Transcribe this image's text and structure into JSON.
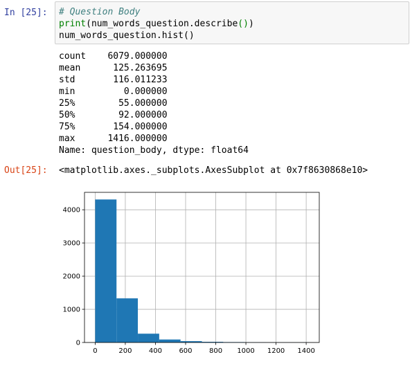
{
  "input_prompt": "In [25]:",
  "output_prompt": "Out[25]:",
  "code": {
    "line1": "# Question Body",
    "line2_builtin": "print",
    "line2_rest": "(num_words_question.describe",
    "line2_parens": "()",
    "line2_close": ")",
    "line3": "num_words_question.hist()"
  },
  "stdout": [
    "count    6079.000000",
    "mean      125.263695",
    "std       116.011233",
    "min         0.000000",
    "25%        55.000000",
    "50%        92.000000",
    "75%       154.000000",
    "max      1416.000000",
    "Name: question_body, dtype: float64"
  ],
  "output_repr": "<matplotlib.axes._subplots.AxesSubplot at 0x7f8630868e10>",
  "chart_data": {
    "type": "bar",
    "title": "",
    "xlabel": "",
    "ylabel": "",
    "bin_edges": [
      0,
      141.6,
      283.2,
      424.8,
      566.4,
      708,
      849.6,
      991.2,
      1132.8,
      1274.4,
      1416
    ],
    "values": [
      4310,
      1330,
      265,
      90,
      40,
      20,
      12,
      6,
      3,
      3
    ],
    "xlim": [
      -70.8,
      1486.8
    ],
    "ylim": [
      0,
      4525
    ],
    "xticks": [
      0,
      200,
      400,
      600,
      800,
      1000,
      1200,
      1400
    ],
    "yticks": [
      0,
      1000,
      2000,
      3000,
      4000
    ],
    "grid": true,
    "bar_color": "#1f77b4"
  }
}
